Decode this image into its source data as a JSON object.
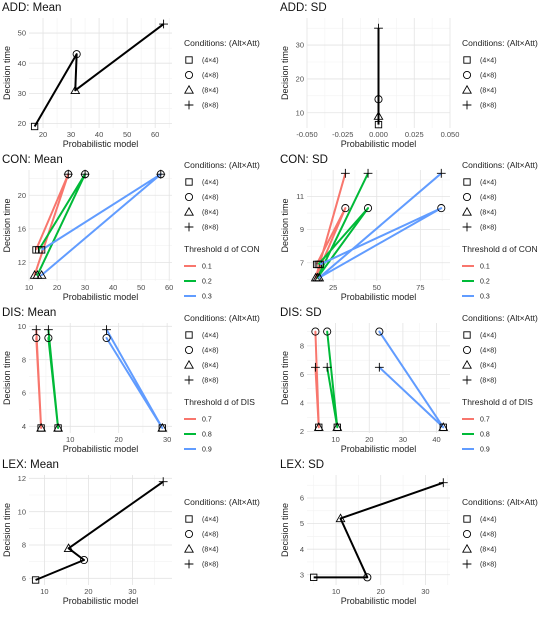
{
  "chart_data": [
    {
      "type": "line",
      "title": "ADD: Mean",
      "xlabel": "Probabilistic model",
      "ylabel": "Decision time",
      "xlim": [
        15,
        66
      ],
      "ylim": [
        18.5,
        55
      ],
      "xticks": [
        20,
        30,
        40,
        50,
        60
      ],
      "yticks": [
        20,
        30,
        40,
        50
      ],
      "legend_title": "Conditions: (Alt×Att)",
      "conditions": [
        "(4×4)",
        "(4×8)",
        "(8×4)",
        "(8×8)"
      ],
      "markers": [
        "square",
        "circle",
        "triangle",
        "plus"
      ],
      "series": [
        {
          "color": "#000000",
          "x": [
            17,
            32,
            31.5,
            63
          ],
          "y": [
            19,
            43,
            31,
            53
          ]
        }
      ]
    },
    {
      "type": "line",
      "title": "ADD: SD",
      "xlabel": "Probabilistic model",
      "ylabel": "Decision time",
      "xlim": [
        -0.05,
        0.05
      ],
      "ylim": [
        5.5,
        38
      ],
      "xticks": [
        -0.05,
        -0.025,
        0,
        0.025,
        0.05
      ],
      "xticklabels": [
        "-0.050",
        "-0.025",
        "0.000",
        "0.025",
        "0.050"
      ],
      "yticks": [
        10,
        20,
        30
      ],
      "legend_title": "Conditions: (Alt×Att)",
      "conditions": [
        "(4×4)",
        "(4×8)",
        "(8×4)",
        "(8×8)"
      ],
      "markers": [
        "square",
        "circle",
        "triangle",
        "plus"
      ],
      "series": [
        {
          "color": "#000000",
          "x": [
            0,
            0,
            0,
            0
          ],
          "y": [
            6.5,
            14,
            9,
            35
          ]
        }
      ]
    },
    {
      "type": "line",
      "title": "CON: Mean",
      "xlabel": "Probabilistic model",
      "ylabel": "Decision time",
      "xlim": [
        10,
        61
      ],
      "ylim": [
        9.8,
        23
      ],
      "xticks": [
        10,
        20,
        30,
        40,
        50,
        60
      ],
      "yticks": [
        12,
        16,
        20
      ],
      "legend_title": "Conditions: (Alt×Att)",
      "conditions": [
        "(4×4)",
        "(4×8)",
        "(8×4)",
        "(8×8)"
      ],
      "markers": [
        "square",
        "circle",
        "triangle",
        "plus"
      ],
      "threshold_title": "Threshold d of CON",
      "series": [
        {
          "name": "0.1",
          "color": "#F8766D",
          "x": [
            12.5,
            24,
            12,
            24
          ],
          "y": [
            13.5,
            22.5,
            10.5,
            22.5
          ]
        },
        {
          "name": "0.2",
          "color": "#00BA38",
          "x": [
            13.5,
            30,
            13,
            30
          ],
          "y": [
            13.5,
            22.5,
            10.5,
            22.5
          ]
        },
        {
          "name": "0.3",
          "color": "#619CFF",
          "x": [
            14.5,
            57,
            14.5,
            57
          ],
          "y": [
            13.5,
            22.5,
            10.5,
            22.5
          ]
        }
      ]
    },
    {
      "type": "line",
      "title": "CON: SD",
      "xlabel": "Probabilistic model",
      "ylabel": "Decision time",
      "xlim": [
        10,
        92
      ],
      "ylim": [
        5.9,
        12.6
      ],
      "xticks": [
        25,
        50,
        75
      ],
      "yticks": [
        7,
        9,
        11
      ],
      "legend_title": "Conditions: (Alt×Att)",
      "conditions": [
        "(4×4)",
        "(4×8)",
        "(8×4)",
        "(8×8)"
      ],
      "markers": [
        "square",
        "circle",
        "triangle",
        "plus"
      ],
      "threshold_title": "Threshold d of CON",
      "series": [
        {
          "name": "0.1",
          "color": "#F8766D",
          "x": [
            15.5,
            32,
            15,
            32
          ],
          "y": [
            6.9,
            10.3,
            6.1,
            12.4
          ]
        },
        {
          "name": "0.2",
          "color": "#00BA38",
          "x": [
            16.5,
            45,
            16,
            45
          ],
          "y": [
            6.9,
            10.3,
            6.1,
            12.4
          ]
        },
        {
          "name": "0.3",
          "color": "#619CFF",
          "x": [
            17.5,
            87,
            17,
            87
          ],
          "y": [
            6.9,
            10.3,
            6.1,
            12.4
          ]
        }
      ]
    },
    {
      "type": "line",
      "title": "DIS: Mean",
      "xlabel": "Probabilistic model",
      "ylabel": "Decision time",
      "xlim": [
        1.5,
        31
      ],
      "ylim": [
        3.6,
        10.2
      ],
      "xticks": [
        10,
        20,
        30
      ],
      "yticks": [
        4,
        6,
        8,
        10
      ],
      "legend_title": "Conditions: (Alt×Att)",
      "conditions": [
        "(4×4)",
        "(4×8)",
        "(8×4)",
        "(8×8)"
      ],
      "markers": [
        "square",
        "circle",
        "triangle",
        "plus"
      ],
      "threshold_title": "Threshold d of DIS",
      "series": [
        {
          "name": "0.7",
          "color": "#F8766D",
          "x": [
            4,
            3,
            4,
            3
          ],
          "y": [
            3.9,
            9.3,
            3.9,
            9.8
          ]
        },
        {
          "name": "0.8",
          "color": "#00BA38",
          "x": [
            7.5,
            5.5,
            7.5,
            5.5
          ],
          "y": [
            3.9,
            9.3,
            3.9,
            9.8
          ]
        },
        {
          "name": "0.9",
          "color": "#619CFF",
          "x": [
            29,
            17.5,
            29,
            17.5
          ],
          "y": [
            3.9,
            9.3,
            3.9,
            9.8
          ]
        }
      ]
    },
    {
      "type": "line",
      "title": "DIS: SD",
      "xlabel": "Probabilistic model",
      "ylabel": "Decision time",
      "xlim": [
        1.5,
        44
      ],
      "ylim": [
        1.9,
        9.6
      ],
      "xticks": [
        10,
        20,
        30,
        40
      ],
      "yticks": [
        2,
        4,
        6,
        8
      ],
      "legend_title": "Conditions: (Alt×Att)",
      "conditions": [
        "(4×4)",
        "(4×8)",
        "(8×4)",
        "(8×8)"
      ],
      "markers": [
        "square",
        "circle",
        "triangle",
        "plus"
      ],
      "threshold_title": "Threshold d of DIS",
      "series": [
        {
          "name": "0.7",
          "color": "#F8766D",
          "x": [
            5,
            4,
            5,
            4
          ],
          "y": [
            2.3,
            9,
            2.3,
            6.5
          ]
        },
        {
          "name": "0.8",
          "color": "#00BA38",
          "x": [
            10.5,
            7.5,
            10.5,
            7.5
          ],
          "y": [
            2.3,
            9,
            2.3,
            6.5
          ]
        },
        {
          "name": "0.9",
          "color": "#619CFF",
          "x": [
            42,
            23,
            42,
            23
          ],
          "y": [
            2.3,
            9,
            2.3,
            6.5
          ]
        }
      ]
    },
    {
      "type": "line",
      "title": "LEX: Mean",
      "xlabel": "Probabilistic model",
      "ylabel": "Decision time",
      "xlim": [
        6.5,
        39
      ],
      "ylim": [
        5.6,
        12.2
      ],
      "xticks": [
        10,
        20,
        30
      ],
      "yticks": [
        6,
        8,
        10,
        12
      ],
      "legend_title": "Conditions: (Alt×Att)",
      "conditions": [
        "(4×4)",
        "(4×8)",
        "(8×4)",
        "(8×8)"
      ],
      "markers": [
        "square",
        "circle",
        "triangle",
        "plus"
      ],
      "series": [
        {
          "color": "#000000",
          "x": [
            8,
            19,
            15.5,
            37
          ],
          "y": [
            5.9,
            7.1,
            7.8,
            11.8
          ]
        }
      ]
    },
    {
      "type": "line",
      "title": "LEX: SD",
      "xlabel": "Probabilistic model",
      "ylabel": "Decision time",
      "xlim": [
        3.5,
        35.5
      ],
      "ylim": [
        2.6,
        6.9
      ],
      "xticks": [
        10,
        20,
        30
      ],
      "yticks": [
        3,
        4,
        5,
        6
      ],
      "legend_title": "Conditions: (Alt×Att)",
      "conditions": [
        "(4×4)",
        "(4×8)",
        "(8×4)",
        "(8×8)"
      ],
      "markers": [
        "square",
        "circle",
        "triangle",
        "plus"
      ],
      "series": [
        {
          "color": "#000000",
          "x": [
            5,
            17,
            11,
            34
          ],
          "y": [
            2.9,
            2.9,
            5.2,
            6.6
          ]
        }
      ]
    }
  ]
}
